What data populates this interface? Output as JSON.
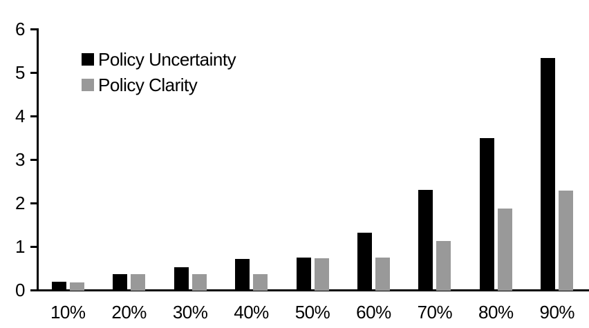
{
  "chart_data": {
    "type": "bar",
    "title": "",
    "xlabel": "",
    "ylabel": "",
    "categories": [
      "10%",
      "20%",
      "30%",
      "40%",
      "50%",
      "60%",
      "70%",
      "80%",
      "90%"
    ],
    "series": [
      {
        "name": "Policy Uncertainty",
        "color": "#000000",
        "values": [
          0.19,
          0.37,
          0.53,
          0.72,
          0.74,
          1.32,
          2.3,
          3.5,
          5.33
        ]
      },
      {
        "name": "Policy Clarity",
        "color": "#999999",
        "values": [
          0.17,
          0.36,
          0.36,
          0.36,
          0.73,
          0.74,
          1.12,
          1.88,
          2.28
        ]
      }
    ],
    "ylim": [
      0,
      6
    ],
    "yticks": [
      0,
      1,
      2,
      3,
      4,
      5,
      6
    ],
    "grid": false,
    "legend_position": "top-left"
  },
  "colors": {
    "background": "#ffffff",
    "axis": "#000000",
    "text": "#000000",
    "series_black": "#000000",
    "series_gray": "#999999"
  }
}
